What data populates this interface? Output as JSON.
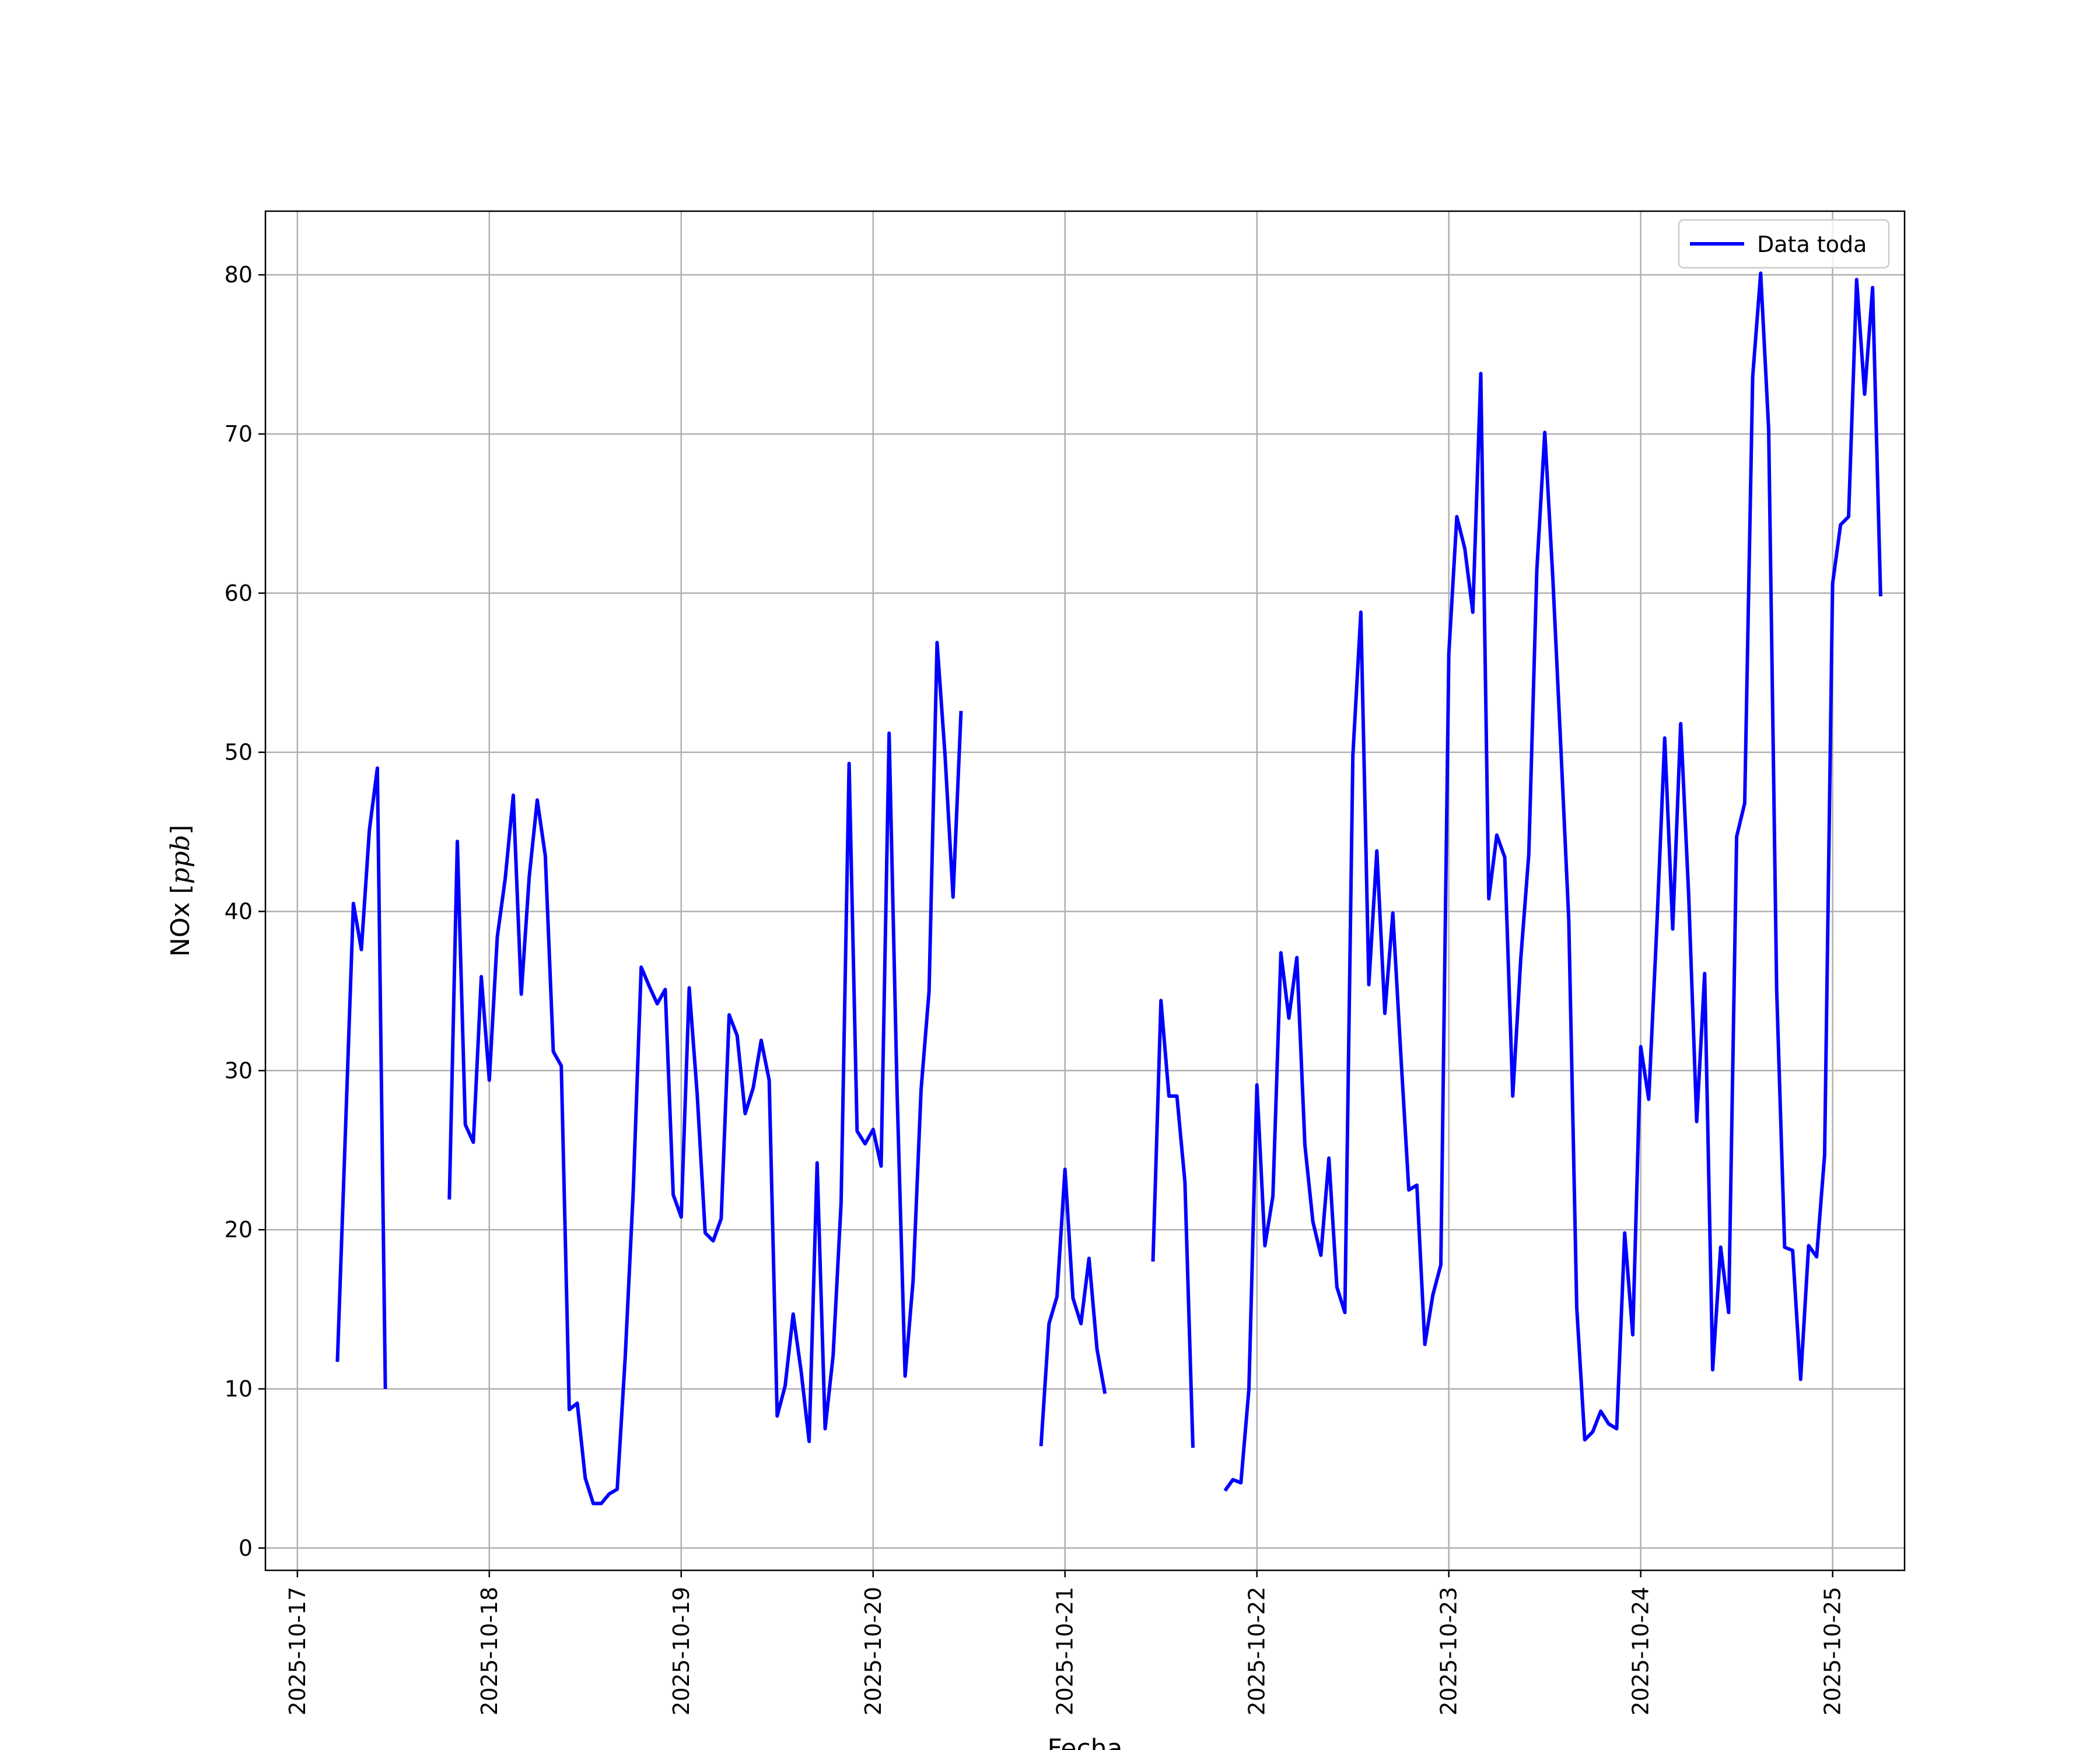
{
  "chart_data": {
    "type": "line",
    "title": "",
    "xlabel": "Fecha",
    "ylabel_main": "NOx [",
    "ylabel_italic": "ppb",
    "ylabel_end": "]",
    "xlim": [
      "2025-10-16 20:00",
      "2025-10-25 09:00"
    ],
    "ylim": [
      -1.4,
      84.0
    ],
    "grid": true,
    "legend_placement": "top-right",
    "x_ticks": [
      "2025-10-17",
      "2025-10-18",
      "2025-10-19",
      "2025-10-20",
      "2025-10-21",
      "2025-10-22",
      "2025-10-23",
      "2025-10-24",
      "2025-10-25"
    ],
    "y_ticks": [
      0,
      10,
      20,
      30,
      40,
      50,
      60,
      70,
      80
    ],
    "series": [
      {
        "name": "Data toda",
        "color": "#0000ff",
        "segments": [
          [
            [
              "2025-10-17 05:00",
              11.7
            ],
            [
              "2025-10-17 07:00",
              40.5
            ],
            [
              "2025-10-17 08:00",
              37.6
            ],
            [
              "2025-10-17 09:00",
              45.1
            ],
            [
              "2025-10-17 10:00",
              49.0
            ],
            [
              "2025-10-17 11:00",
              10.0
            ]
          ],
          [
            [
              "2025-10-17 19:00",
              21.9
            ],
            [
              "2025-10-17 20:00",
              44.4
            ],
            [
              "2025-10-17 21:00",
              26.6
            ],
            [
              "2025-10-17 22:00",
              25.5
            ],
            [
              "2025-10-17 23:00",
              35.9
            ],
            [
              "2025-10-18 00:00",
              29.4
            ],
            [
              "2025-10-18 01:00",
              38.4
            ],
            [
              "2025-10-18 02:00",
              42.1
            ],
            [
              "2025-10-18 03:00",
              47.3
            ],
            [
              "2025-10-18 04:00",
              34.8
            ],
            [
              "2025-10-18 05:00",
              42.2
            ],
            [
              "2025-10-18 06:00",
              47.0
            ],
            [
              "2025-10-18 07:00",
              43.5
            ],
            [
              "2025-10-18 08:00",
              31.2
            ],
            [
              "2025-10-18 09:00",
              30.3
            ],
            [
              "2025-10-18 10:00",
              8.7
            ],
            [
              "2025-10-18 11:00",
              9.1
            ],
            [
              "2025-10-18 12:00",
              4.4
            ],
            [
              "2025-10-18 13:00",
              2.8
            ],
            [
              "2025-10-18 14:00",
              2.8
            ],
            [
              "2025-10-18 15:00",
              3.4
            ],
            [
              "2025-10-18 16:00",
              3.7
            ],
            [
              "2025-10-18 17:00",
              12.0
            ],
            [
              "2025-10-18 18:00",
              22.4
            ],
            [
              "2025-10-18 19:00",
              36.5
            ],
            [
              "2025-10-18 20:00",
              35.3
            ],
            [
              "2025-10-18 21:00",
              34.2
            ],
            [
              "2025-10-18 22:00",
              35.1
            ],
            [
              "2025-10-18 23:00",
              22.2
            ],
            [
              "2025-10-19 00:00",
              20.8
            ],
            [
              "2025-10-19 01:00",
              35.2
            ],
            [
              "2025-10-19 02:00",
              28.5
            ],
            [
              "2025-10-19 03:00",
              19.8
            ],
            [
              "2025-10-19 04:00",
              19.3
            ],
            [
              "2025-10-19 05:00",
              20.7
            ],
            [
              "2025-10-19 06:00",
              33.5
            ],
            [
              "2025-10-19 07:00",
              32.2
            ],
            [
              "2025-10-19 08:00",
              27.3
            ],
            [
              "2025-10-19 09:00",
              28.9
            ],
            [
              "2025-10-19 10:00",
              31.9
            ],
            [
              "2025-10-19 11:00",
              29.4
            ],
            [
              "2025-10-19 12:00",
              8.3
            ],
            [
              "2025-10-19 13:00",
              10.2
            ],
            [
              "2025-10-19 14:00",
              14.7
            ],
            [
              "2025-10-19 15:00",
              11.1
            ],
            [
              "2025-10-19 16:00",
              6.7
            ],
            [
              "2025-10-19 17:00",
              24.2
            ],
            [
              "2025-10-19 18:00",
              7.5
            ],
            [
              "2025-10-19 19:00",
              12.1
            ],
            [
              "2025-10-19 20:00",
              21.7
            ],
            [
              "2025-10-19 21:00",
              49.3
            ],
            [
              "2025-10-19 22:00",
              26.2
            ],
            [
              "2025-10-19 23:00",
              25.4
            ],
            [
              "2025-10-20 00:00",
              26.3
            ],
            [
              "2025-10-20 01:00",
              24.0
            ],
            [
              "2025-10-20 02:00",
              51.2
            ],
            [
              "2025-10-20 03:00",
              28.6
            ],
            [
              "2025-10-20 04:00",
              10.8
            ],
            [
              "2025-10-20 05:00",
              16.8
            ],
            [
              "2025-10-20 06:00",
              28.8
            ],
            [
              "2025-10-20 07:00",
              35.0
            ],
            [
              "2025-10-20 08:00",
              56.9
            ],
            [
              "2025-10-20 09:00",
              49.8
            ],
            [
              "2025-10-20 10:00",
              40.9
            ],
            [
              "2025-10-20 11:00",
              52.6
            ]
          ],
          [
            [
              "2025-10-20 21:00",
              6.4
            ],
            [
              "2025-10-20 22:00",
              14.1
            ],
            [
              "2025-10-20 23:00",
              15.8
            ],
            [
              "2025-10-21 00:00",
              23.8
            ],
            [
              "2025-10-21 01:00",
              15.7
            ],
            [
              "2025-10-21 02:00",
              14.1
            ],
            [
              "2025-10-21 03:00",
              18.2
            ],
            [
              "2025-10-21 04:00",
              12.5
            ],
            [
              "2025-10-21 05:00",
              9.7
            ]
          ],
          [
            [
              "2025-10-21 11:00",
              18.0
            ],
            [
              "2025-10-21 12:00",
              34.4
            ],
            [
              "2025-10-21 13:00",
              28.4
            ],
            [
              "2025-10-21 14:00",
              28.4
            ],
            [
              "2025-10-21 15:00",
              23.0
            ],
            [
              "2025-10-21 16:00",
              6.3
            ]
          ],
          [
            [
              "2025-10-21 20:00",
              3.6
            ],
            [
              "2025-10-21 21:00",
              4.3
            ],
            [
              "2025-10-21 22:00",
              4.1
            ],
            [
              "2025-10-21 23:00",
              10.0
            ],
            [
              "2025-10-22 00:00",
              29.1
            ],
            [
              "2025-10-22 01:00",
              19.0
            ],
            [
              "2025-10-22 02:00",
              22.1
            ],
            [
              "2025-10-22 03:00",
              37.4
            ],
            [
              "2025-10-22 04:00",
              33.3
            ],
            [
              "2025-10-22 05:00",
              37.1
            ],
            [
              "2025-10-22 06:00",
              25.3
            ],
            [
              "2025-10-22 07:00",
              20.5
            ],
            [
              "2025-10-22 08:00",
              18.4
            ],
            [
              "2025-10-22 09:00",
              24.5
            ],
            [
              "2025-10-22 10:00",
              16.4
            ],
            [
              "2025-10-22 11:00",
              14.8
            ],
            [
              "2025-10-22 12:00",
              49.8
            ],
            [
              "2025-10-22 13:00",
              58.8
            ],
            [
              "2025-10-22 14:00",
              35.4
            ],
            [
              "2025-10-22 15:00",
              43.8
            ],
            [
              "2025-10-22 16:00",
              33.6
            ],
            [
              "2025-10-22 17:00",
              39.9
            ],
            [
              "2025-10-22 18:00",
              31.0
            ],
            [
              "2025-10-22 19:00",
              22.5
            ],
            [
              "2025-10-22 20:00",
              22.8
            ],
            [
              "2025-10-22 21:00",
              12.8
            ],
            [
              "2025-10-22 22:00",
              15.9
            ],
            [
              "2025-10-22 23:00",
              17.8
            ],
            [
              "2025-10-23 00:00",
              56.2
            ],
            [
              "2025-10-23 01:00",
              64.8
            ],
            [
              "2025-10-23 02:00",
              62.8
            ],
            [
              "2025-10-23 03:00",
              58.8
            ],
            [
              "2025-10-23 04:00",
              73.8
            ],
            [
              "2025-10-23 05:00",
              40.8
            ],
            [
              "2025-10-23 06:00",
              44.8
            ],
            [
              "2025-10-23 07:00",
              43.4
            ],
            [
              "2025-10-23 08:00",
              28.4
            ],
            [
              "2025-10-23 09:00",
              37.0
            ],
            [
              "2025-10-23 10:00",
              43.6
            ],
            [
              "2025-10-23 11:00",
              61.4
            ],
            [
              "2025-10-23 12:00",
              70.1
            ],
            [
              "2025-10-23 13:00",
              61.0
            ],
            [
              "2025-10-23 14:00",
              50.4
            ],
            [
              "2025-10-23 15:00",
              39.5
            ],
            [
              "2025-10-23 16:00",
              15.1
            ],
            [
              "2025-10-23 17:00",
              6.8
            ],
            [
              "2025-10-23 18:00",
              7.3
            ],
            [
              "2025-10-23 19:00",
              8.6
            ],
            [
              "2025-10-23 20:00",
              7.8
            ],
            [
              "2025-10-23 21:00",
              7.5
            ],
            [
              "2025-10-23 22:00",
              19.8
            ],
            [
              "2025-10-23 23:00",
              13.4
            ],
            [
              "2025-10-24 00:00",
              31.5
            ],
            [
              "2025-10-24 01:00",
              28.2
            ],
            [
              "2025-10-24 02:00",
              38.9
            ],
            [
              "2025-10-24 03:00",
              50.9
            ],
            [
              "2025-10-24 04:00",
              38.9
            ],
            [
              "2025-10-24 05:00",
              51.8
            ],
            [
              "2025-10-24 06:00",
              41.0
            ],
            [
              "2025-10-24 07:00",
              26.8
            ],
            [
              "2025-10-24 08:00",
              36.1
            ],
            [
              "2025-10-24 09:00",
              11.2
            ],
            [
              "2025-10-24 10:00",
              18.9
            ],
            [
              "2025-10-24 11:00",
              14.8
            ],
            [
              "2025-10-24 12:00",
              44.7
            ],
            [
              "2025-10-24 13:00",
              46.8
            ],
            [
              "2025-10-24 14:00",
              73.6
            ],
            [
              "2025-10-24 15:00",
              80.1
            ],
            [
              "2025-10-24 16:00",
              70.3
            ],
            [
              "2025-10-24 17:00",
              35.1
            ],
            [
              "2025-10-24 18:00",
              18.9
            ],
            [
              "2025-10-24 19:00",
              18.7
            ],
            [
              "2025-10-24 20:00",
              10.6
            ],
            [
              "2025-10-24 21:00",
              19.0
            ],
            [
              "2025-10-24 22:00",
              18.3
            ],
            [
              "2025-10-24 23:00",
              24.7
            ],
            [
              "2025-10-25 00:00",
              60.6
            ],
            [
              "2025-10-25 01:00",
              64.3
            ],
            [
              "2025-10-25 02:00",
              64.8
            ],
            [
              "2025-10-25 03:00",
              79.7
            ],
            [
              "2025-10-25 04:00",
              72.5
            ],
            [
              "2025-10-25 05:00",
              79.2
            ],
            [
              "2025-10-25 06:00",
              59.8
            ]
          ]
        ]
      }
    ]
  }
}
